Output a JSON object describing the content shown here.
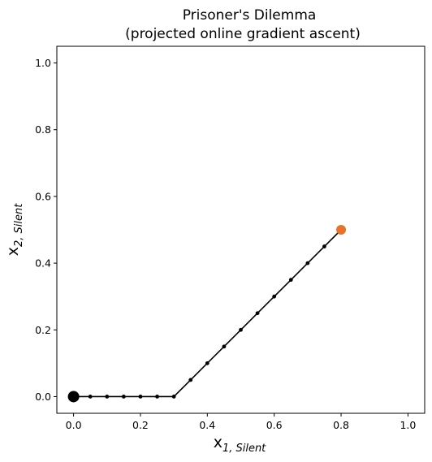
{
  "chart_data": {
    "type": "line",
    "title": "Prisoner's Dilemma",
    "subtitle": "(projected online gradient ascent)",
    "xlabel": {
      "symbol": "x",
      "subscript": "1, Silent"
    },
    "ylabel": {
      "symbol": "x",
      "subscript": "2, Silent"
    },
    "xlim": [
      -0.05,
      1.05
    ],
    "ylim": [
      -0.05,
      1.05
    ],
    "xticks": [
      0.0,
      0.2,
      0.4,
      0.6,
      0.8,
      1.0
    ],
    "yticks": [
      0.0,
      0.2,
      0.4,
      0.6,
      0.8,
      1.0
    ],
    "xtick_labels": [
      "0.0",
      "0.2",
      "0.4",
      "0.6",
      "0.8",
      "1.0"
    ],
    "ytick_labels": [
      "0.0",
      "0.2",
      "0.4",
      "0.6",
      "0.8",
      "1.0"
    ],
    "grid": false,
    "series": [
      {
        "x": [
          0.0,
          0.05,
          0.1,
          0.15,
          0.2,
          0.25,
          0.3,
          0.35,
          0.4,
          0.45,
          0.5,
          0.55,
          0.6,
          0.65,
          0.7,
          0.75,
          0.8
        ],
        "y": [
          0.0,
          0.0,
          0.0,
          0.0,
          0.0,
          0.0,
          0.0,
          0.05,
          0.1,
          0.15,
          0.2,
          0.25,
          0.3,
          0.35,
          0.4,
          0.45,
          0.5
        ],
        "color": "#000000"
      }
    ],
    "start_point": {
      "x": 0.0,
      "y": 0.0,
      "color": "#000000"
    },
    "end_point": {
      "x": 0.8,
      "y": 0.5,
      "color": "#e6732a"
    }
  }
}
